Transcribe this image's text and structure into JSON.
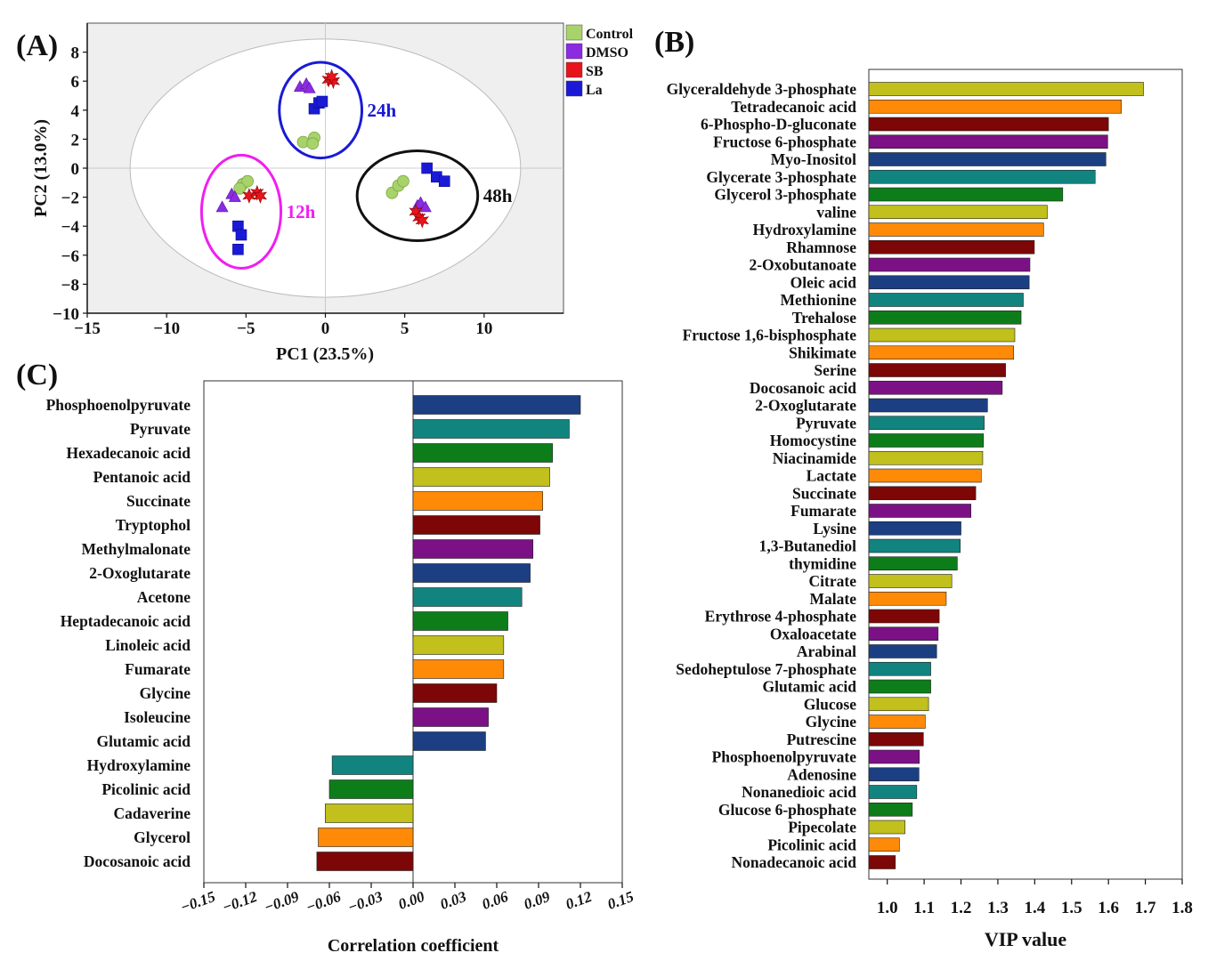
{
  "palette": [
    "#1b3f82",
    "#12847f",
    "#0d7d1a",
    "#c1c01c",
    "#ff8a08",
    "#7d0606",
    "#7c1186"
  ],
  "vip_palette": [
    "#c1c01c",
    "#ff8a08",
    "#7d0606",
    "#7c1186",
    "#1b3f82",
    "#12847f",
    "#0d7d1a"
  ],
  "chart_data": [
    {
      "panel": "(A)",
      "type": "scatter",
      "xlabel": "PC1 (23.5%)",
      "ylabel": "PC2 (13.0%)",
      "xlim": [
        -15,
        15
      ],
      "ylim": [
        -10,
        10
      ],
      "xticks": [
        -15,
        -10,
        -5,
        0,
        5,
        10
      ],
      "yticks": [
        -10,
        -8,
        -6,
        -4,
        -2,
        0,
        2,
        4,
        6,
        8
      ],
      "legend": [
        {
          "label": "Control",
          "color": "#a8d36a",
          "marker": "circle"
        },
        {
          "label": "DMSO",
          "color": "#8b2be2",
          "marker": "triangle"
        },
        {
          "label": "SB",
          "color": "#e8141c",
          "marker": "star"
        },
        {
          "label": "La",
          "color": "#1a1ad6",
          "marker": "square"
        }
      ],
      "series": [
        {
          "name": "Control",
          "points": [
            [
              -5.2,
              -1.1
            ],
            [
              -4.9,
              -0.9
            ],
            [
              -5.4,
              -1.4
            ],
            [
              -1.4,
              1.8
            ],
            [
              -0.7,
              2.1
            ],
            [
              -0.8,
              1.7
            ],
            [
              4.2,
              -1.7
            ],
            [
              4.6,
              -1.2
            ],
            [
              4.9,
              -0.9
            ]
          ]
        },
        {
          "name": "DMSO",
          "points": [
            [
              -6.5,
              -2.7
            ],
            [
              -5.9,
              -1.8
            ],
            [
              -5.7,
              -2.0
            ],
            [
              -1.6,
              5.6
            ],
            [
              -1.2,
              5.8
            ],
            [
              -1.0,
              5.5
            ],
            [
              5.8,
              -2.6
            ],
            [
              6.0,
              -2.4
            ],
            [
              6.3,
              -2.7
            ]
          ]
        },
        {
          "name": "SB",
          "points": [
            [
              -4.8,
              -1.9
            ],
            [
              -4.3,
              -1.7
            ],
            [
              -4.1,
              -1.9
            ],
            [
              0.2,
              6.1
            ],
            [
              0.5,
              6.0
            ],
            [
              0.4,
              6.3
            ],
            [
              5.7,
              -3.0
            ],
            [
              5.9,
              -3.4
            ],
            [
              6.1,
              -3.6
            ]
          ]
        },
        {
          "name": "La",
          "points": [
            [
              -5.5,
              -4.0
            ],
            [
              -5.3,
              -4.6
            ],
            [
              -5.5,
              -5.6
            ],
            [
              -0.7,
              4.1
            ],
            [
              -0.4,
              4.5
            ],
            [
              -0.2,
              4.6
            ],
            [
              6.4,
              0.0
            ],
            [
              7.0,
              -0.6
            ],
            [
              7.5,
              -0.9
            ]
          ]
        }
      ],
      "groups": [
        {
          "label": "12h",
          "color": "#f01ef0",
          "cx": -5.3,
          "cy": -3.0,
          "rx": 2.5,
          "ry": 3.9
        },
        {
          "label": "24h",
          "color": "#1a1ad6",
          "cx": -0.3,
          "cy": 4.0,
          "rx": 2.6,
          "ry": 3.3
        },
        {
          "label": "48h",
          "color": "#111111",
          "cx": 5.8,
          "cy": -1.9,
          "rx": 3.8,
          "ry": 3.1
        }
      ],
      "confidence_ellipse": {
        "cx": 0,
        "cy": 0,
        "rx": 12.3,
        "ry": 8.9
      }
    },
    {
      "panel": "(B)",
      "type": "bar",
      "orientation": "horizontal",
      "xlabel": "VIP value",
      "xlim": [
        0.95,
        1.8
      ],
      "xticks": [
        1.0,
        1.1,
        1.2,
        1.3,
        1.4,
        1.5,
        1.6,
        1.7,
        1.8
      ],
      "categories": [
        "Glyceraldehyde 3-phosphate",
        "Tetradecanoic acid",
        "6-Phospho-D-gluconate",
        "Fructose 6-phosphate",
        "Myo-Inositol",
        "Glycerate 3-phosphate",
        "Glycerol 3-phosphate",
        "valine",
        "Hydroxylamine",
        "Rhamnose",
        "2-Oxobutanoate",
        "Oleic acid",
        "Methionine",
        "Trehalose",
        "Fructose 1,6-bisphosphate",
        "Shikimate",
        "Serine",
        "Docosanoic acid",
        "2-Oxoglutarate",
        "Pyruvate",
        "Homocystine",
        "Niacinamide",
        "Lactate",
        "Succinate",
        "Fumarate",
        "Lysine",
        "1,3-Butanediol",
        "thymidine",
        "Citrate",
        "Malate",
        "Erythrose 4-phosphate",
        "Oxaloacetate",
        "Arabinal",
        "Sedoheptulose 7-phosphate",
        "Glutamic acid",
        "Glucose",
        "Glycine",
        "Putrescine",
        "Phosphoenolpyruvate",
        "Adenosine",
        "Nonanedioic acid",
        "Glucose 6-phosphate",
        "Pipecolate",
        "Picolinic acid",
        "Nonadecanoic acid"
      ],
      "values": [
        1.695,
        1.635,
        1.6,
        1.598,
        1.593,
        1.564,
        1.476,
        1.434,
        1.424,
        1.399,
        1.387,
        1.385,
        1.369,
        1.363,
        1.346,
        1.343,
        1.321,
        1.312,
        1.272,
        1.263,
        1.261,
        1.259,
        1.255,
        1.24,
        1.227,
        1.2,
        1.198,
        1.19,
        1.175,
        1.16,
        1.141,
        1.138,
        1.134,
        1.118,
        1.118,
        1.112,
        1.103,
        1.098,
        1.087,
        1.086,
        1.08,
        1.068,
        1.048,
        1.033,
        1.022
      ]
    },
    {
      "panel": "(C)",
      "type": "bar",
      "orientation": "horizontal",
      "xlabel": "Correlation coefficient",
      "xlim": [
        -0.15,
        0.15
      ],
      "xticks": [
        "-0.15",
        "-0.12",
        "-0.09",
        "-0.06",
        "-0.03",
        "0.00",
        "0.03",
        "0.06",
        "0.09",
        "0.12",
        "0.15"
      ],
      "categories": [
        "Phosphoenolpyruvate",
        "Pyruvate",
        "Hexadecanoic acid",
        "Pentanoic acid",
        "Succinate",
        "Tryptophol",
        "Methylmalonate",
        "2-Oxoglutarate",
        "Acetone",
        "Heptadecanoic acid",
        "Linoleic acid",
        "Fumarate",
        "Glycine",
        "Isoleucine",
        "Glutamic acid",
        "Hydroxylamine",
        "Picolinic acid",
        "Cadaverine",
        "Glycerol",
        "Docosanoic acid"
      ],
      "values": [
        0.12,
        0.112,
        0.1,
        0.098,
        0.093,
        0.091,
        0.086,
        0.084,
        0.078,
        0.068,
        0.065,
        0.065,
        0.06,
        0.054,
        0.052,
        -0.058,
        -0.06,
        -0.063,
        -0.068,
        -0.069
      ]
    }
  ]
}
